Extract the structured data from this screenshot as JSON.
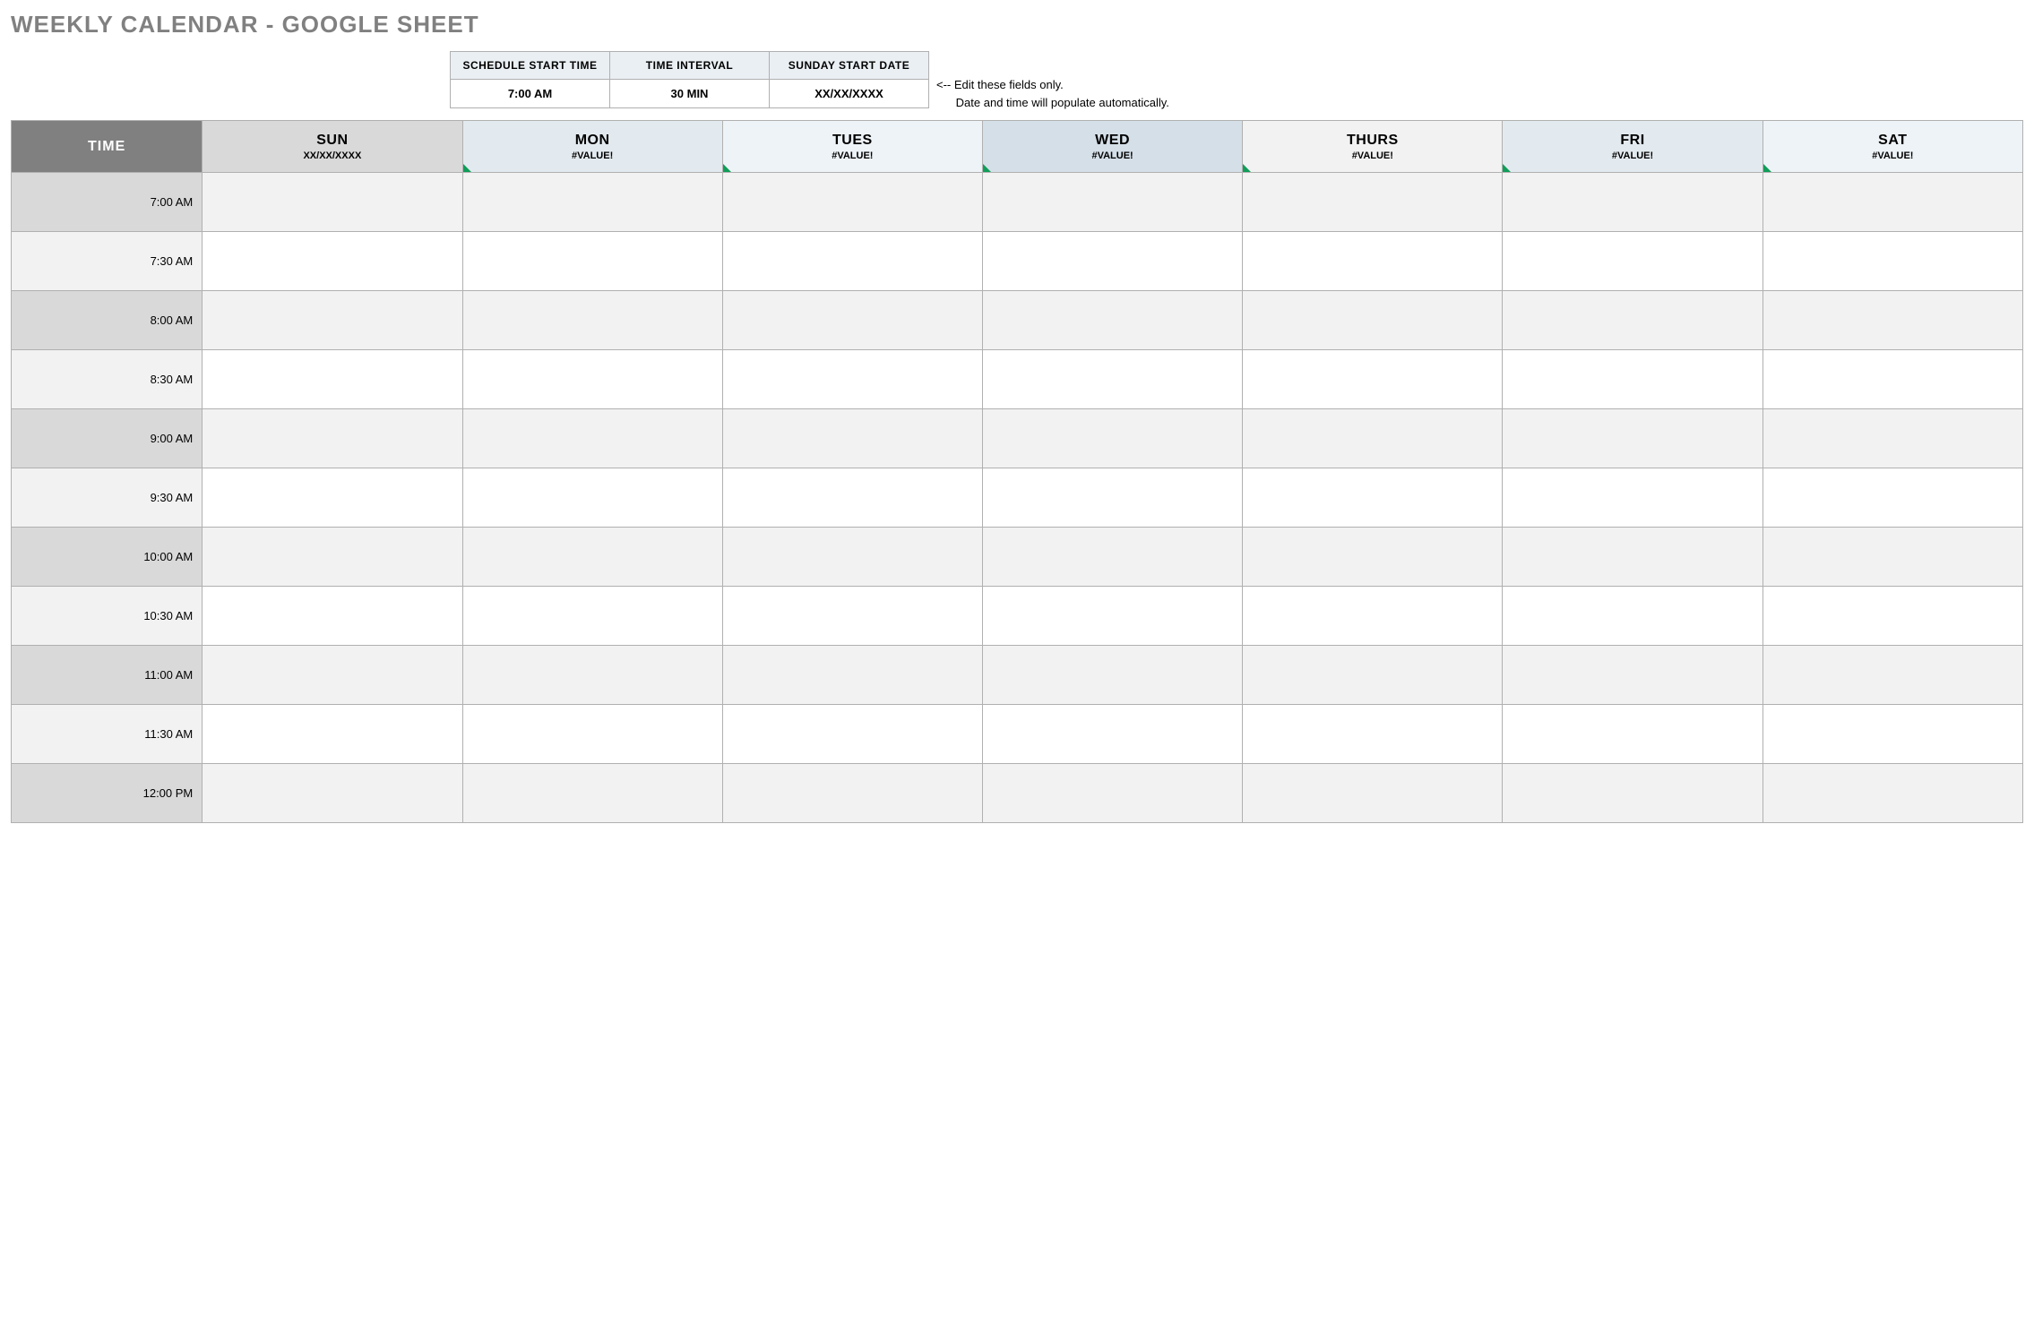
{
  "title": "WEEKLY CALENDAR - GOOGLE SHEET",
  "config": {
    "headers": [
      "SCHEDULE START TIME",
      "TIME INTERVAL",
      "SUNDAY START DATE"
    ],
    "values": [
      "7:00 AM",
      "30 MIN",
      "XX/XX/XXXX"
    ]
  },
  "hint_line1": "<-- Edit these fields only.",
  "hint_line2": "Date and time will populate automatically.",
  "time_header": "TIME",
  "days": [
    {
      "name": "SUN",
      "sub": "XX/XX/XXXX",
      "bg": "#d9d9d9",
      "tri": false
    },
    {
      "name": "MON",
      "sub": "#VALUE!",
      "bg": "#e3eaef",
      "tri": true
    },
    {
      "name": "TUES",
      "sub": "#VALUE!",
      "bg": "#eef3f7",
      "tri": true
    },
    {
      "name": "WED",
      "sub": "#VALUE!",
      "bg": "#d5dfe8",
      "tri": true
    },
    {
      "name": "THURS",
      "sub": "#VALUE!",
      "bg": "#f2f2f2",
      "tri": true
    },
    {
      "name": "FRI",
      "sub": "#VALUE!",
      "bg": "#e3eaef",
      "tri": true
    },
    {
      "name": "SAT",
      "sub": "#VALUE!",
      "bg": "#eef3f7",
      "tri": true
    }
  ],
  "time_slots": [
    "7:00 AM",
    "7:30 AM",
    "8:00 AM",
    "8:30 AM",
    "9:00 AM",
    "9:30 AM",
    "10:00 AM",
    "10:30 AM",
    "11:00 AM",
    "11:30 AM",
    "12:00 PM"
  ],
  "colors": {
    "time_odd": "#d9d9d9",
    "time_even": "#f2f2f2",
    "day_odd": [
      "#d9d9d9",
      "#e3eaef",
      "#eef3f7",
      "#d5dfe8",
      "#f2f2f2",
      "#e3eaef",
      "#eef3f7"
    ],
    "slot_odd": "#f2f2f2",
    "slot_even": "#ffffff"
  }
}
